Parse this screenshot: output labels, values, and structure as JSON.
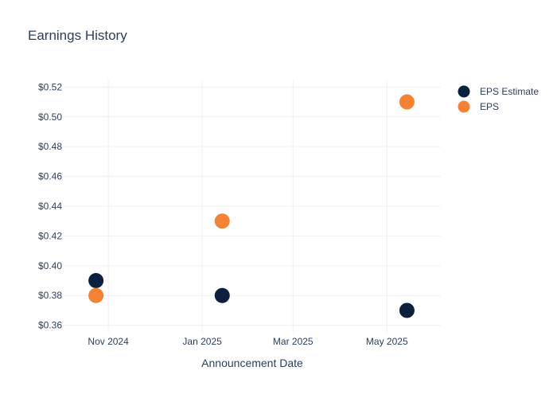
{
  "chart_data": {
    "type": "scatter",
    "title": "Earnings History",
    "xlabel": "Announcement Date",
    "ylabel": "",
    "x_ticks": [
      "Nov 2024",
      "Jan 2025",
      "Mar 2025",
      "May 2025"
    ],
    "y_ticks": [
      "$0.36",
      "$0.38",
      "$0.40",
      "$0.42",
      "$0.44",
      "$0.46",
      "$0.48",
      "$0.50",
      "$0.52"
    ],
    "ylim": [
      0.355,
      0.525
    ],
    "xlim": [
      "2024-10-03",
      "2025-06-05"
    ],
    "x_tick_dates": [
      "2024-11-01",
      "2025-01-01",
      "2025-03-01",
      "2025-05-01"
    ],
    "grid": true,
    "legend_position": "top-right",
    "x": [
      "2024-10-24",
      "2025-01-14",
      "2025-05-14"
    ],
    "series": [
      {
        "name": "EPS Estimate",
        "color": "#0b1f3f",
        "values": [
          0.39,
          0.38,
          0.37
        ]
      },
      {
        "name": "EPS",
        "color": "#f58233",
        "values": [
          0.38,
          0.43,
          0.51
        ]
      }
    ]
  }
}
